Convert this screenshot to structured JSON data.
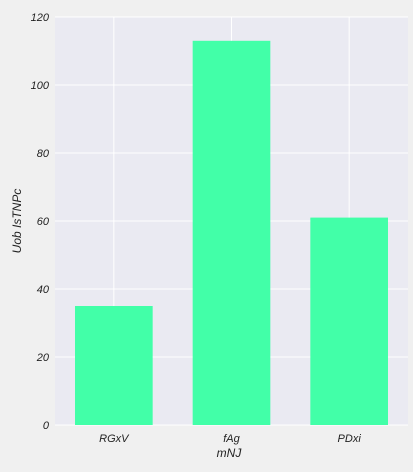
{
  "chart_data": {
    "type": "bar",
    "title": "",
    "xlabel": "mNJ",
    "ylabel": "Uob IsTNPc",
    "categories": [
      "RGxV",
      "fAg",
      "PDxi"
    ],
    "values": [
      35,
      113,
      61
    ],
    "ylim": [
      0,
      120
    ],
    "yticks": [
      0,
      20,
      40,
      60,
      80,
      100,
      120
    ],
    "ytick_labels": [
      "0",
      "20",
      "40",
      "60",
      "80",
      "100",
      "120"
    ],
    "grid": true,
    "legend": "none"
  },
  "colors": {
    "figure_background": "#f0f0f0",
    "plot_background": "#eaeaf2",
    "grid": "#ffffff",
    "bar": "#42ffa8",
    "text": "#222222"
  }
}
